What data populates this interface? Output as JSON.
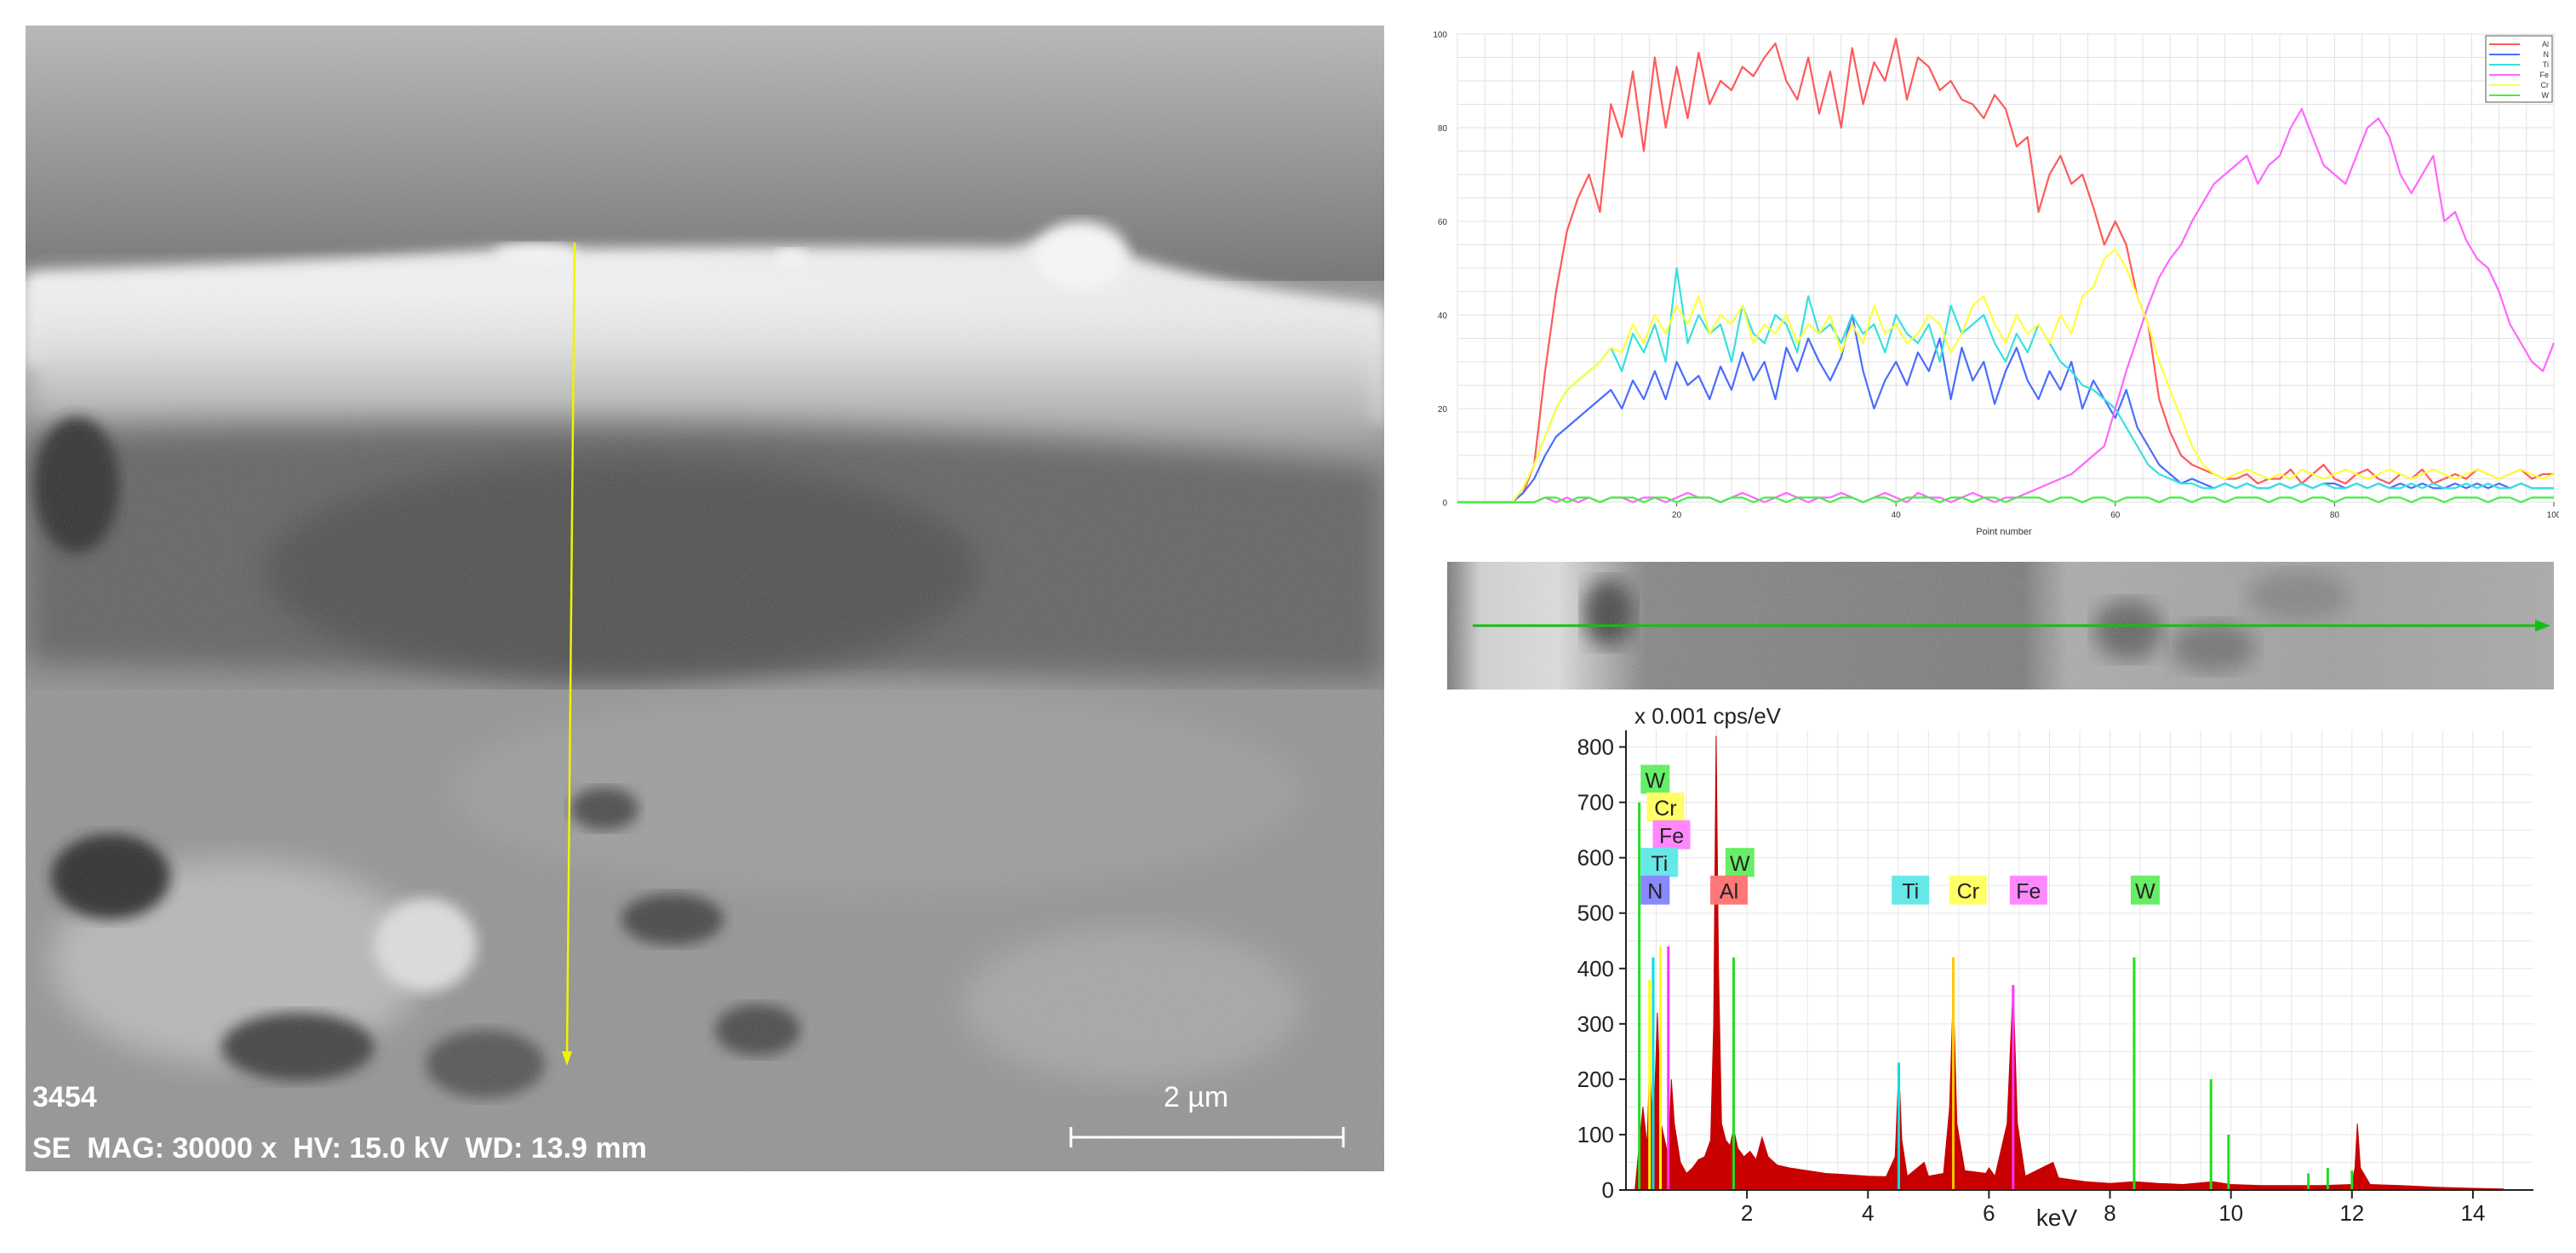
{
  "sem_image": {
    "sample_id": "3454",
    "info_text": "SE  MAG: 30000 x  HV: 15.0 kV  WD: 13.9 mm",
    "scale_bar_label": "2 µm",
    "colors": {
      "scan_line": "#f2f200",
      "text": "#ffffff"
    }
  },
  "scan_strip": {
    "colors": {
      "scan_line": "#10c010"
    }
  },
  "chart_data": [
    {
      "type": "line",
      "title": "",
      "xlabel": "Point number",
      "ylabel": "",
      "xlim": [
        0,
        100
      ],
      "ylim": [
        0,
        100
      ],
      "x_ticks": [
        "20",
        "40",
        "60",
        "80",
        "100"
      ],
      "y_ticks": [
        "0",
        "20",
        "40",
        "60",
        "80",
        "100"
      ],
      "grid": true,
      "legend": "top-right",
      "series": [
        {
          "name": "Al",
          "color": "#ff5a5a",
          "values": [
            0,
            0,
            0,
            0,
            0,
            0,
            2,
            8,
            28,
            45,
            58,
            65,
            70,
            62,
            85,
            78,
            92,
            75,
            95,
            80,
            93,
            82,
            96,
            85,
            90,
            88,
            93,
            91,
            95,
            98,
            90,
            86,
            95,
            83,
            92,
            80,
            97,
            85,
            94,
            90,
            99,
            86,
            95,
            93,
            88,
            90,
            86,
            85,
            82,
            87,
            84,
            76,
            78,
            62,
            70,
            74,
            68,
            70,
            63,
            55,
            60,
            55,
            44,
            38,
            22,
            15,
            10,
            8,
            7,
            6,
            5,
            5,
            6,
            4,
            5,
            5,
            7,
            4,
            6,
            8,
            5,
            4,
            6,
            7,
            5,
            4,
            6,
            5,
            7,
            4,
            5,
            6,
            5,
            7,
            6,
            5,
            6,
            7,
            5,
            6,
            6
          ]
        },
        {
          "name": "N",
          "color": "#4a6cff",
          "values": [
            0,
            0,
            0,
            0,
            0,
            0,
            2,
            5,
            10,
            14,
            16,
            18,
            20,
            22,
            24,
            20,
            26,
            22,
            28,
            22,
            30,
            25,
            27,
            22,
            29,
            24,
            32,
            26,
            30,
            22,
            33,
            28,
            35,
            30,
            26,
            31,
            40,
            28,
            20,
            26,
            30,
            25,
            32,
            28,
            35,
            22,
            33,
            26,
            30,
            21,
            28,
            33,
            26,
            22,
            28,
            24,
            30,
            20,
            26,
            22,
            18,
            24,
            16,
            12,
            8,
            6,
            4,
            5,
            4,
            3,
            4,
            3,
            4,
            3,
            3,
            4,
            3,
            4,
            3,
            4,
            4,
            3,
            4,
            3,
            4,
            3,
            4,
            3,
            4,
            3,
            3,
            4,
            3,
            4,
            3,
            4,
            3,
            4,
            3,
            3,
            3
          ]
        },
        {
          "name": "Ti",
          "color": "#36e0e0",
          "values": [
            0,
            0,
            0,
            0,
            0,
            0,
            3,
            8,
            14,
            20,
            24,
            26,
            28,
            30,
            33,
            28,
            36,
            32,
            38,
            30,
            50,
            34,
            40,
            36,
            38,
            30,
            42,
            36,
            34,
            40,
            38,
            32,
            44,
            36,
            38,
            34,
            40,
            36,
            38,
            32,
            40,
            36,
            34,
            38,
            30,
            42,
            36,
            38,
            40,
            34,
            30,
            36,
            32,
            38,
            34,
            30,
            28,
            25,
            24,
            22,
            20,
            16,
            12,
            8,
            6,
            5,
            4,
            4,
            3,
            3,
            4,
            3,
            4,
            3,
            3,
            4,
            3,
            4,
            3,
            4,
            3,
            3,
            4,
            3,
            4,
            3,
            3,
            4,
            3,
            4,
            3,
            3,
            4,
            3,
            4,
            3,
            3,
            4,
            3,
            3,
            3
          ]
        },
        {
          "name": "Fe",
          "color": "#ff66ff",
          "values": [
            0,
            0,
            0,
            0,
            0,
            0,
            0,
            0,
            1,
            0,
            1,
            0,
            1,
            0,
            1,
            1,
            0,
            1,
            1,
            0,
            1,
            2,
            1,
            1,
            0,
            1,
            2,
            1,
            0,
            1,
            2,
            1,
            0,
            1,
            1,
            2,
            1,
            0,
            1,
            2,
            1,
            0,
            2,
            1,
            1,
            0,
            1,
            2,
            1,
            0,
            1,
            1,
            2,
            3,
            4,
            5,
            6,
            8,
            10,
            12,
            20,
            28,
            35,
            42,
            48,
            52,
            55,
            60,
            64,
            68,
            70,
            72,
            74,
            68,
            72,
            74,
            80,
            84,
            78,
            72,
            70,
            68,
            74,
            80,
            82,
            78,
            70,
            66,
            70,
            74,
            60,
            62,
            56,
            52,
            50,
            45,
            38,
            34,
            30,
            28,
            34
          ]
        },
        {
          "name": "Cr",
          "color": "#ffff3a",
          "values": [
            0,
            0,
            0,
            0,
            0,
            0,
            3,
            8,
            14,
            20,
            24,
            26,
            28,
            30,
            33,
            32,
            38,
            34,
            40,
            36,
            42,
            38,
            44,
            36,
            40,
            38,
            42,
            34,
            38,
            36,
            40,
            34,
            38,
            36,
            40,
            32,
            38,
            34,
            42,
            36,
            38,
            34,
            36,
            40,
            38,
            32,
            36,
            42,
            44,
            38,
            34,
            40,
            36,
            38,
            34,
            40,
            36,
            44,
            46,
            52,
            54,
            50,
            44,
            38,
            30,
            24,
            18,
            12,
            8,
            6,
            5,
            6,
            7,
            6,
            5,
            6,
            5,
            7,
            6,
            5,
            6,
            7,
            6,
            5,
            6,
            7,
            6,
            5,
            6,
            7,
            6,
            5,
            6,
            7,
            6,
            5,
            6,
            7,
            6,
            5,
            6
          ]
        },
        {
          "name": "W",
          "color": "#44ee44",
          "values": [
            0,
            0,
            0,
            0,
            0,
            0,
            0,
            0,
            1,
            1,
            0,
            1,
            1,
            0,
            1,
            1,
            1,
            0,
            1,
            1,
            0,
            1,
            1,
            1,
            0,
            1,
            1,
            0,
            1,
            1,
            0,
            1,
            1,
            1,
            0,
            1,
            1,
            0,
            1,
            1,
            0,
            1,
            1,
            1,
            0,
            1,
            1,
            0,
            1,
            1,
            0,
            1,
            1,
            1,
            0,
            1,
            1,
            0,
            1,
            1,
            0,
            1,
            1,
            1,
            0,
            1,
            1,
            0,
            1,
            1,
            0,
            1,
            1,
            1,
            0,
            1,
            1,
            0,
            1,
            1,
            0,
            1,
            1,
            1,
            0,
            1,
            1,
            0,
            1,
            1,
            0,
            1,
            1,
            1,
            0,
            1,
            1,
            0,
            1,
            1,
            1
          ]
        }
      ]
    },
    {
      "type": "area",
      "title": "",
      "unit_label": "x 0.001 cps/eV",
      "xlabel": "keV",
      "ylabel": "",
      "xlim": [
        0,
        15
      ],
      "ylim": [
        0,
        830
      ],
      "x_ticks": [
        "2",
        "4",
        "6",
        "8",
        "10",
        "12",
        "14"
      ],
      "y_ticks": [
        "0",
        "100",
        "200",
        "300",
        "400",
        "500",
        "600",
        "700",
        "800"
      ],
      "grid": true,
      "spectrum": {
        "color": "#c80000",
        "points": [
          [
            0.15,
            0
          ],
          [
            0.2,
            60
          ],
          [
            0.28,
            150
          ],
          [
            0.35,
            80
          ],
          [
            0.39,
            230
          ],
          [
            0.45,
            90
          ],
          [
            0.52,
            320
          ],
          [
            0.58,
            120
          ],
          [
            0.62,
            100
          ],
          [
            0.7,
            60
          ],
          [
            0.75,
            200
          ],
          [
            0.8,
            120
          ],
          [
            0.9,
            50
          ],
          [
            1.0,
            30
          ],
          [
            1.1,
            40
          ],
          [
            1.2,
            55
          ],
          [
            1.3,
            60
          ],
          [
            1.4,
            90
          ],
          [
            1.45,
            300
          ],
          [
            1.49,
            820
          ],
          [
            1.53,
            400
          ],
          [
            1.58,
            120
          ],
          [
            1.65,
            90
          ],
          [
            1.72,
            80
          ],
          [
            1.78,
            110
          ],
          [
            1.85,
            75
          ],
          [
            1.95,
            60
          ],
          [
            2.05,
            70
          ],
          [
            2.15,
            55
          ],
          [
            2.25,
            95
          ],
          [
            2.35,
            60
          ],
          [
            2.5,
            45
          ],
          [
            2.7,
            40
          ],
          [
            3.0,
            35
          ],
          [
            3.3,
            30
          ],
          [
            3.6,
            28
          ],
          [
            4.0,
            25
          ],
          [
            4.3,
            24
          ],
          [
            4.45,
            60
          ],
          [
            4.51,
            220
          ],
          [
            4.56,
            90
          ],
          [
            4.65,
            25
          ],
          [
            4.93,
            50
          ],
          [
            5.0,
            25
          ],
          [
            5.25,
            30
          ],
          [
            5.35,
            150
          ],
          [
            5.41,
            360
          ],
          [
            5.47,
            120
          ],
          [
            5.6,
            35
          ],
          [
            5.95,
            30
          ],
          [
            6.0,
            40
          ],
          [
            6.1,
            25
          ],
          [
            6.3,
            120
          ],
          [
            6.4,
            370
          ],
          [
            6.47,
            120
          ],
          [
            6.6,
            25
          ],
          [
            7.06,
            50
          ],
          [
            7.15,
            22
          ],
          [
            7.6,
            15
          ],
          [
            8.0,
            12
          ],
          [
            8.4,
            15
          ],
          [
            8.8,
            12
          ],
          [
            9.2,
            10
          ],
          [
            9.7,
            15
          ],
          [
            10.0,
            10
          ],
          [
            10.5,
            8
          ],
          [
            11.0,
            8
          ],
          [
            11.5,
            8
          ],
          [
            12.0,
            10
          ],
          [
            12.05,
            40
          ],
          [
            12.09,
            120
          ],
          [
            12.14,
            40
          ],
          [
            12.3,
            10
          ],
          [
            12.8,
            8
          ],
          [
            13.4,
            5
          ],
          [
            14.0,
            3
          ],
          [
            14.5,
            2
          ]
        ]
      },
      "overlay_lines": [
        {
          "element": "N",
          "color": "#ffff00",
          "x": 0.39,
          "y": 380
        },
        {
          "element": "Ti",
          "color": "#00e0e0",
          "x": 0.45,
          "y": 420
        },
        {
          "element": "Cr",
          "color": "#ffff00",
          "x": 0.57,
          "y": 440
        },
        {
          "element": "Fe",
          "color": "#ff33ff",
          "x": 0.7,
          "y": 440
        },
        {
          "element": "W",
          "color": "#22dd22",
          "x": 0.22,
          "y": 700
        },
        {
          "element": "W",
          "color": "#22dd22",
          "x": 1.78,
          "y": 420
        },
        {
          "element": "Ti",
          "color": "#00e0e0",
          "x": 4.51,
          "y": 230
        },
        {
          "element": "Cr",
          "color": "#ffc800",
          "x": 5.41,
          "y": 420
        },
        {
          "element": "Fe",
          "color": "#ff33ff",
          "x": 6.4,
          "y": 370
        },
        {
          "element": "W",
          "color": "#22dd22",
          "x": 8.4,
          "y": 420
        },
        {
          "element": "W",
          "color": "#22dd22",
          "x": 9.67,
          "y": 200
        },
        {
          "element": "W",
          "color": "#22dd22",
          "x": 9.96,
          "y": 100
        },
        {
          "element": "W",
          "color": "#22dd22",
          "x": 11.28,
          "y": 30
        },
        {
          "element": "W",
          "color": "#22dd22",
          "x": 11.6,
          "y": 40
        },
        {
          "element": "W",
          "color": "#22dd22",
          "x": 12.0,
          "y": 35
        }
      ],
      "element_tags": [
        {
          "label": "W",
          "color": "#66ee66",
          "x": 0.3,
          "y": 740
        },
        {
          "label": "Cr",
          "color": "#ffff66",
          "x": 0.4,
          "y": 690
        },
        {
          "label": "Fe",
          "color": "#ff88ff",
          "x": 0.5,
          "y": 640
        },
        {
          "label": "Ti",
          "color": "#66e8e8",
          "x": 0.3,
          "y": 590
        },
        {
          "label": "W",
          "color": "#66ee66",
          "x": 1.7,
          "y": 590
        },
        {
          "label": "N",
          "color": "#8888ff",
          "x": 0.3,
          "y": 540
        },
        {
          "label": "Al",
          "color": "#ff7777",
          "x": 1.45,
          "y": 540
        },
        {
          "label": "Ti",
          "color": "#66e8e8",
          "x": 4.45,
          "y": 540
        },
        {
          "label": "Cr",
          "color": "#ffff66",
          "x": 5.4,
          "y": 540
        },
        {
          "label": "Fe",
          "color": "#ff88ff",
          "x": 6.4,
          "y": 540
        },
        {
          "label": "W",
          "color": "#66ee66",
          "x": 8.4,
          "y": 540
        }
      ]
    }
  ]
}
